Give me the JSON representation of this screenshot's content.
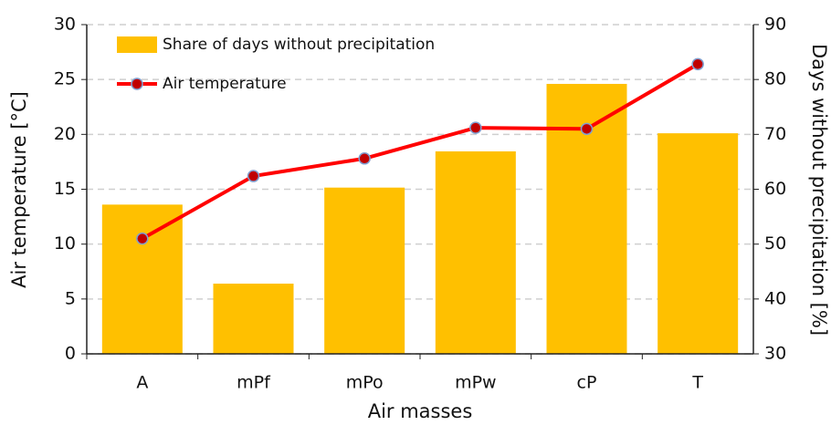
{
  "chart_data": {
    "type": "bar-line",
    "xlabel": "Air masses",
    "ylabel": "Air temperature [°C]",
    "y2label": "Days without precipitation [%]",
    "categories": [
      "A",
      "mPf",
      "mPo",
      "mPw",
      "cP",
      "T"
    ],
    "series": [
      {
        "name": "Share of days without precipitation",
        "type": "bar",
        "axis": "y2",
        "color": "#ffc000",
        "values": [
          57.2,
          42.8,
          60.3,
          66.9,
          79.2,
          70.2
        ]
      },
      {
        "name": "Air temperature",
        "type": "line",
        "axis": "y",
        "color": "#ff0000",
        "marker_color": "#c00000",
        "values": [
          10.5,
          16.2,
          17.8,
          20.6,
          20.5,
          26.4
        ]
      }
    ],
    "ylim": [
      0,
      30
    ],
    "yticks": [
      0,
      5,
      10,
      15,
      20,
      25,
      30
    ],
    "y2lim": [
      30,
      90
    ],
    "y2ticks": [
      30,
      40,
      50,
      60,
      70,
      80,
      90
    ],
    "grid": true,
    "legend": "upper left"
  }
}
